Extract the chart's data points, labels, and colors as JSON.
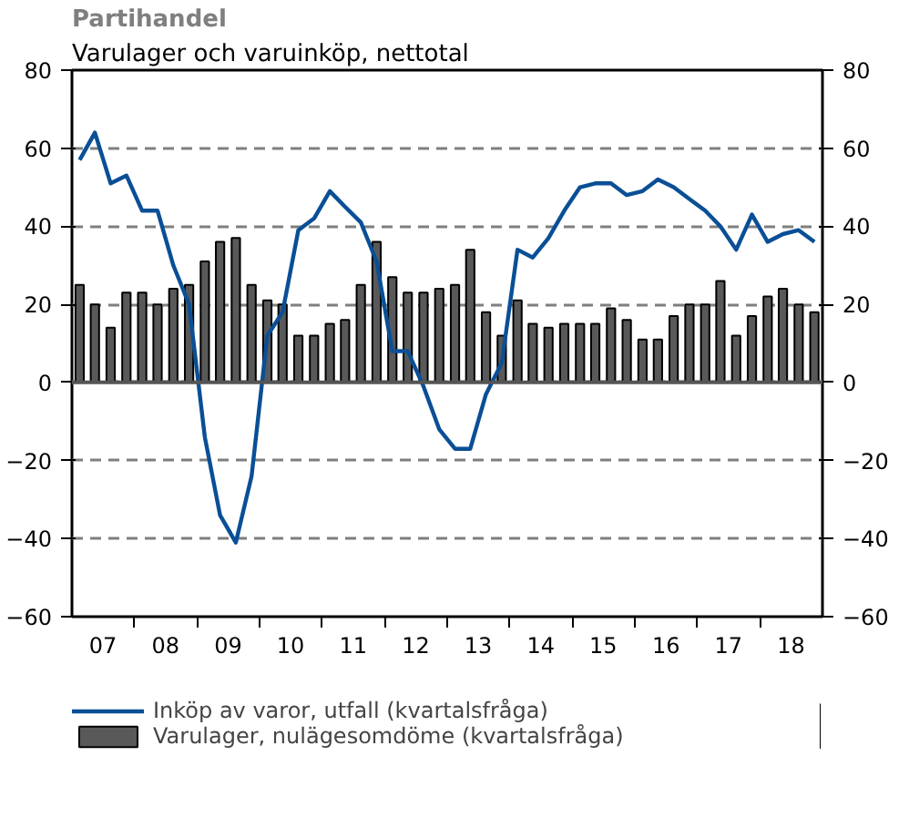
{
  "chart_data": {
    "type": "bar",
    "title": "Partihandel",
    "subtitle": "Varulager och varuinköp, nettotal",
    "x": [
      "2007-02-15",
      "2007-05-15",
      "2007-08-15",
      "2007-11-15",
      "2008-02-15",
      "2008-05-15",
      "2008-08-15",
      "2008-11-15",
      "2009-02-15",
      "2009-05-15",
      "2009-08-15",
      "2009-11-15",
      "2010-02-15",
      "2010-05-15",
      "2010-08-15",
      "2010-11-15",
      "2011-02-15",
      "2011-05-15",
      "2011-08-15",
      "2011-11-15",
      "2012-02-15",
      "2012-05-15",
      "2012-08-15",
      "2012-11-15",
      "2013-02-15",
      "2013-05-15",
      "2013-08-15",
      "2013-11-15",
      "2014-02-15",
      "2014-05-15",
      "2014-08-15",
      "2014-11-15",
      "2015-02-15",
      "2015-05-15",
      "2015-08-15",
      "2015-11-15",
      "2016-02-15",
      "2016-05-15",
      "2016-08-15",
      "2016-11-15",
      "2017-02-15",
      "2017-05-15",
      "2017-08-15",
      "2017-11-15",
      "2018-02-15",
      "2018-05-15",
      "2018-08-15",
      "2018-11-15"
    ],
    "series": [
      {
        "name": "Inköp av varor, utfall (kvartalsfråga)",
        "type": "line",
        "color": "#0a4f96",
        "values": [
          57,
          64,
          51,
          53,
          44,
          44,
          30,
          20,
          -14,
          -34,
          -41,
          -24,
          12,
          18,
          39,
          42,
          49,
          45,
          41,
          31,
          8,
          8,
          -1,
          -12,
          -17,
          -17,
          -3,
          5,
          34,
          32,
          37,
          44,
          50,
          51,
          51,
          48,
          49,
          52,
          50,
          47,
          44,
          40,
          34,
          43,
          36,
          38,
          39,
          36
        ]
      },
      {
        "name": "Varulager, nulägesomdöme (kvartalsfråga)",
        "color": "#595959",
        "values": [
          25,
          20,
          14,
          23,
          23,
          20,
          24,
          25,
          31,
          36,
          37,
          25,
          21,
          20,
          12,
          12,
          15,
          16,
          25,
          36,
          27,
          23,
          23,
          24,
          25,
          34,
          18,
          12,
          21,
          15,
          14,
          15,
          15,
          15,
          19,
          16,
          11,
          11,
          17,
          20,
          20,
          26,
          12,
          17,
          22,
          24,
          20,
          18
        ]
      }
    ],
    "xlim": [
      "2007-01-01",
      "2019-01-01"
    ],
    "xticks": [
      {
        "value": "2007-07-01",
        "label": "07"
      },
      {
        "value": "2008-07-01",
        "label": "08"
      },
      {
        "value": "2009-07-01",
        "label": "09"
      },
      {
        "value": "2010-07-01",
        "label": "10"
      },
      {
        "value": "2011-07-01",
        "label": "11"
      },
      {
        "value": "2012-07-01",
        "label": "12"
      },
      {
        "value": "2013-07-01",
        "label": "13"
      },
      {
        "value": "2014-07-01",
        "label": "14"
      },
      {
        "value": "2015-07-01",
        "label": "15"
      },
      {
        "value": "2016-07-01",
        "label": "16"
      },
      {
        "value": "2017-07-01",
        "label": "17"
      },
      {
        "value": "2018-07-01",
        "label": "18"
      },
      {
        "value": "2008-01-01",
        "label": null
      },
      {
        "value": "2009-01-01",
        "label": null
      },
      {
        "value": "2010-01-01",
        "label": null
      },
      {
        "value": "2011-01-01",
        "label": null
      },
      {
        "value": "2012-01-01",
        "label": null
      },
      {
        "value": "2013-01-01",
        "label": null
      },
      {
        "value": "2014-01-01",
        "label": null
      },
      {
        "value": "2015-01-01",
        "label": null
      },
      {
        "value": "2016-01-01",
        "label": null
      },
      {
        "value": "2017-01-01",
        "label": null
      },
      {
        "value": "2018-01-01",
        "label": null
      }
    ],
    "ylim": [
      -60,
      80
    ],
    "yticks": [
      -60,
      -40,
      -20,
      0,
      20,
      40,
      60,
      80
    ],
    "y2lim": [
      -60,
      80
    ],
    "y2ticks": [
      -60,
      -40,
      -20,
      0,
      20,
      40,
      60,
      80
    ],
    "grid": "y",
    "legend": "bottom",
    "line_style": "solid"
  }
}
